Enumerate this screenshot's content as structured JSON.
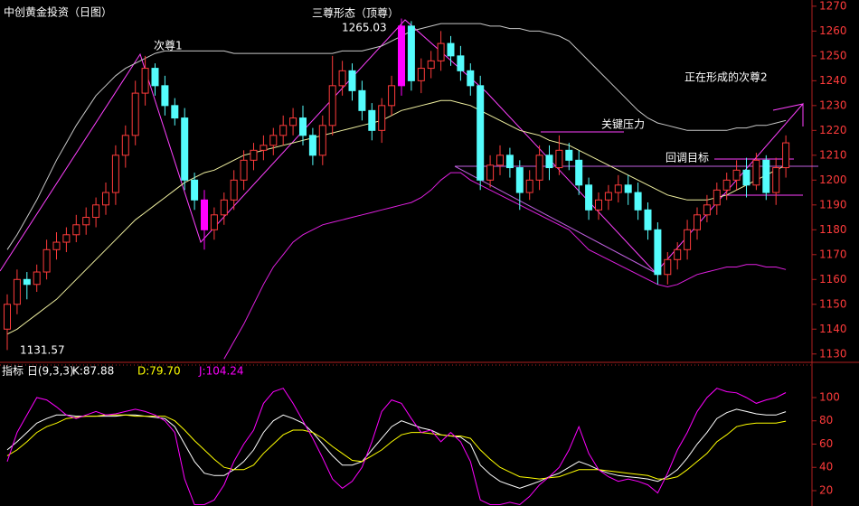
{
  "chart_data": [
    {
      "type": "candlestick",
      "title": "中创黄金投资（日图）",
      "open": [
        1140,
        1150,
        1160,
        1158,
        1163,
        1172,
        1175,
        1178,
        1182,
        1185,
        1190,
        1195,
        1210,
        1218,
        1235,
        1245,
        1238,
        1230,
        1225,
        1200,
        1192,
        1180,
        1186,
        1192,
        1200,
        1208,
        1212,
        1214,
        1218,
        1222,
        1225,
        1218,
        1210,
        1222,
        1238,
        1244,
        1236,
        1228,
        1220,
        1230,
        1238,
        1262,
        1240,
        1245,
        1248,
        1255,
        1250,
        1244,
        1238,
        1200,
        1206,
        1210,
        1205,
        1195,
        1200,
        1210,
        1205,
        1212,
        1208,
        1198,
        1188,
        1192,
        1195,
        1198,
        1195,
        1188,
        1180,
        1162,
        1168,
        1172,
        1180,
        1186,
        1190,
        1196,
        1200,
        1204,
        1198,
        1208,
        1195,
        1205
      ],
      "high": [
        1154,
        1164,
        1163,
        1166,
        1176,
        1179,
        1181,
        1186,
        1189,
        1193,
        1199,
        1214,
        1222,
        1240,
        1250,
        1247,
        1242,
        1233,
        1229,
        1203,
        1196,
        1189,
        1195,
        1204,
        1212,
        1215,
        1218,
        1221,
        1226,
        1229,
        1230,
        1221,
        1226,
        1250,
        1248,
        1247,
        1240,
        1231,
        1233,
        1242,
        1265.03,
        1264,
        1249,
        1252,
        1260,
        1258,
        1254,
        1247,
        1242,
        1210,
        1214,
        1213,
        1208,
        1204,
        1214,
        1214,
        1218,
        1215,
        1212,
        1201,
        1195,
        1198,
        1202,
        1202,
        1199,
        1191,
        1183,
        1171,
        1175,
        1184,
        1189,
        1194,
        1199,
        1203,
        1208,
        1209,
        1211,
        1210,
        1209,
        1218
      ],
      "low": [
        1131.57,
        1146,
        1152,
        1155,
        1160,
        1168,
        1171,
        1175,
        1178,
        1181,
        1186,
        1190,
        1205,
        1214,
        1230,
        1234,
        1226,
        1222,
        1196,
        1188,
        1172,
        1176,
        1182,
        1188,
        1196,
        1204,
        1208,
        1210,
        1214,
        1218,
        1214,
        1206,
        1206,
        1218,
        1234,
        1232,
        1224,
        1216,
        1215,
        1226,
        1234,
        1236,
        1235,
        1241,
        1244,
        1246,
        1240,
        1234,
        1196,
        1197,
        1202,
        1201,
        1188,
        1192,
        1196,
        1200,
        1202,
        1204,
        1194,
        1184,
        1184,
        1188,
        1191,
        1190,
        1184,
        1176,
        1158,
        1158,
        1164,
        1168,
        1176,
        1183,
        1186,
        1192,
        1196,
        1193,
        1196,
        1192,
        1190,
        1201
      ],
      "close": [
        1150,
        1160,
        1158,
        1163,
        1172,
        1175,
        1178,
        1182,
        1185,
        1190,
        1195,
        1210,
        1218,
        1235,
        1245,
        1238,
        1230,
        1225,
        1200,
        1192,
        1180,
        1186,
        1192,
        1200,
        1208,
        1212,
        1214,
        1218,
        1222,
        1225,
        1218,
        1210,
        1222,
        1238,
        1244,
        1236,
        1228,
        1220,
        1230,
        1238,
        1262,
        1240,
        1245,
        1248,
        1255,
        1250,
        1244,
        1238,
        1200,
        1206,
        1210,
        1205,
        1195,
        1200,
        1210,
        1205,
        1212,
        1208,
        1198,
        1188,
        1192,
        1195,
        1198,
        1195,
        1188,
        1180,
        1162,
        1168,
        1172,
        1180,
        1186,
        1190,
        1196,
        1200,
        1204,
        1198,
        1208,
        1195,
        1205,
        1215
      ],
      "up_color": "#ff3b3b",
      "down_color": "#54fcfc",
      "highlight": [
        20,
        40
      ],
      "highlight_color": "#ff00ff",
      "bands": [
        {
          "color": "#c8c8c8",
          "values": [
            1172,
            1178,
            1185,
            1192,
            1200,
            1208,
            1215,
            1222,
            1228,
            1234,
            1238,
            1242,
            1245,
            1247,
            1249,
            1251,
            1252,
            1252,
            1252,
            1252,
            1252,
            1252,
            1252,
            1251,
            1251,
            1251,
            1251,
            1251,
            1251,
            1251,
            1251,
            1251,
            1251,
            1251,
            1252,
            1252,
            1252,
            1253,
            1254,
            1256,
            1258,
            1260,
            1261,
            1262,
            1263,
            1263,
            1263,
            1263,
            1263,
            1262,
            1262,
            1261,
            1261,
            1260,
            1260,
            1259,
            1258,
            1256,
            1252,
            1248,
            1244,
            1240,
            1236,
            1232,
            1228,
            1225,
            1223,
            1222,
            1221,
            1220,
            1220,
            1220,
            1220,
            1220,
            1221,
            1221,
            1222,
            1222,
            1223,
            1224
          ]
        },
        {
          "color": "#f0f0a0",
          "values": [
            1138,
            1140,
            1143,
            1146,
            1149,
            1152,
            1156,
            1160,
            1164,
            1168,
            1172,
            1176,
            1180,
            1184,
            1187,
            1190,
            1193,
            1196,
            1199,
            1201,
            1203,
            1204,
            1206,
            1208,
            1210,
            1211,
            1212,
            1213,
            1214,
            1215,
            1216,
            1217,
            1218,
            1219,
            1220,
            1221,
            1222,
            1223,
            1224,
            1226,
            1228,
            1229,
            1230,
            1231,
            1232,
            1232,
            1231,
            1230,
            1228,
            1226,
            1224,
            1222,
            1220,
            1219,
            1218,
            1216,
            1215,
            1214,
            1212,
            1210,
            1208,
            1206,
            1204,
            1202,
            1200,
            1198,
            1196,
            1194,
            1193,
            1192,
            1192,
            1192,
            1193,
            1194,
            1196,
            1198,
            1200,
            1202,
            1204,
            1206
          ]
        },
        {
          "color": "#e020e0",
          "values": [
            null,
            null,
            null,
            null,
            null,
            null,
            null,
            null,
            null,
            null,
            null,
            null,
            null,
            null,
            null,
            null,
            null,
            null,
            null,
            null,
            null,
            null,
            1128,
            1135,
            1142,
            1150,
            1158,
            1165,
            1170,
            1175,
            1178,
            1180,
            1182,
            1183,
            1184,
            1185,
            1186,
            1187,
            1188,
            1189,
            1190,
            1191,
            1193,
            1196,
            1200,
            1203,
            1203,
            1200,
            1198,
            1196,
            1194,
            1192,
            1190,
            1188,
            1186,
            1184,
            1182,
            1180,
            1176,
            1172,
            1170,
            1168,
            1166,
            1164,
            1162,
            1160,
            1158,
            1157,
            1158,
            1160,
            1162,
            1163,
            1164,
            1165,
            1165,
            1166,
            1166,
            1165,
            1165,
            1164
          ]
        }
      ],
      "annotations": [
        "次尊1",
        "三尊形态（顶尊）",
        "关键压力",
        "回调目标",
        "正在形成的次尊2"
      ],
      "ylim": [
        1127,
        1272.5
      ],
      "yticks": [
        1130,
        1140,
        1150,
        1160,
        1170,
        1180,
        1190,
        1200,
        1210,
        1220,
        1230,
        1240,
        1250,
        1260,
        1270
      ]
    },
    {
      "type": "line",
      "title": "指标 日(9,3,3)",
      "series": [
        {
          "name": "K:87.88",
          "color": "#ffffff",
          "values": [
            55,
            62,
            70,
            78,
            82,
            85,
            85,
            84,
            84,
            84,
            84,
            84,
            85,
            85,
            84,
            83,
            82,
            75,
            60,
            45,
            35,
            33,
            33,
            38,
            45,
            55,
            70,
            80,
            85,
            82,
            78,
            70,
            60,
            50,
            42,
            42,
            45,
            55,
            65,
            75,
            80,
            77,
            74,
            72,
            68,
            67,
            66,
            60,
            42,
            34,
            28,
            25,
            22,
            25,
            28,
            32,
            35,
            40,
            45,
            42,
            38,
            35,
            33,
            32,
            31,
            30,
            28,
            32,
            38,
            48,
            60,
            70,
            82,
            87,
            90,
            88,
            86,
            85,
            85,
            87.88
          ]
        },
        {
          "name": "D:79.70",
          "color": "#ffff00",
          "values": [
            50,
            55,
            62,
            70,
            75,
            78,
            82,
            83,
            84,
            84,
            85,
            85,
            85,
            84,
            84,
            84,
            84,
            80,
            72,
            63,
            55,
            47,
            40,
            38,
            38,
            42,
            52,
            60,
            68,
            72,
            72,
            70,
            65,
            58,
            52,
            46,
            45,
            50,
            55,
            62,
            68,
            70,
            70,
            69,
            68,
            67,
            67,
            65,
            55,
            47,
            40,
            36,
            32,
            31,
            30,
            31,
            32,
            35,
            38,
            38,
            38,
            37,
            36,
            35,
            34,
            33,
            30,
            30,
            32,
            38,
            45,
            52,
            62,
            68,
            75,
            77,
            78,
            78,
            78,
            79.7
          ]
        },
        {
          "name": "J:104.24",
          "color": "#ff00ff",
          "values": [
            45,
            70,
            85,
            100,
            98,
            92,
            85,
            82,
            85,
            88,
            85,
            86,
            88,
            90,
            88,
            85,
            80,
            70,
            30,
            8,
            8,
            12,
            25,
            45,
            60,
            72,
            95,
            105,
            108,
            95,
            80,
            65,
            48,
            30,
            22,
            28,
            40,
            62,
            88,
            98,
            95,
            82,
            70,
            72,
            62,
            70,
            62,
            45,
            12,
            8,
            8,
            10,
            8,
            15,
            25,
            32,
            40,
            55,
            75,
            52,
            38,
            32,
            28,
            30,
            28,
            25,
            18,
            35,
            55,
            70,
            88,
            100,
            108,
            105,
            104,
            100,
            95,
            98,
            100,
            104.24
          ]
        }
      ],
      "ylim": [
        6.8,
        129.5
      ],
      "yticks": [
        20,
        40,
        60,
        80,
        100
      ]
    }
  ]
}
